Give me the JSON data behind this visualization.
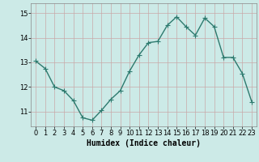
{
  "x": [
    0,
    1,
    2,
    3,
    4,
    5,
    6,
    7,
    8,
    9,
    10,
    11,
    12,
    13,
    14,
    15,
    16,
    17,
    18,
    19,
    20,
    21,
    22,
    23
  ],
  "y": [
    13.05,
    12.75,
    12.0,
    11.85,
    11.45,
    10.75,
    10.65,
    11.05,
    11.5,
    11.85,
    12.65,
    13.3,
    13.8,
    13.85,
    14.5,
    14.85,
    14.45,
    14.1,
    14.8,
    14.45,
    13.2,
    13.2,
    12.55,
    11.4
  ],
  "line_color": "#2d7a6e",
  "marker": "+",
  "marker_size": 4,
  "marker_linewidth": 0.8,
  "bg_color": "#cceae7",
  "grid_color": "#c8a8a8",
  "xlabel": "Humidex (Indice chaleur)",
  "xlabel_fontsize": 7,
  "yticks": [
    11,
    12,
    13,
    14,
    15
  ],
  "xticks": [
    0,
    1,
    2,
    3,
    4,
    5,
    6,
    7,
    8,
    9,
    10,
    11,
    12,
    13,
    14,
    15,
    16,
    17,
    18,
    19,
    20,
    21,
    22,
    23
  ],
  "ylim": [
    10.4,
    15.4
  ],
  "xlim": [
    -0.5,
    23.5
  ],
  "tick_fontsize": 6,
  "linewidth": 1.0
}
